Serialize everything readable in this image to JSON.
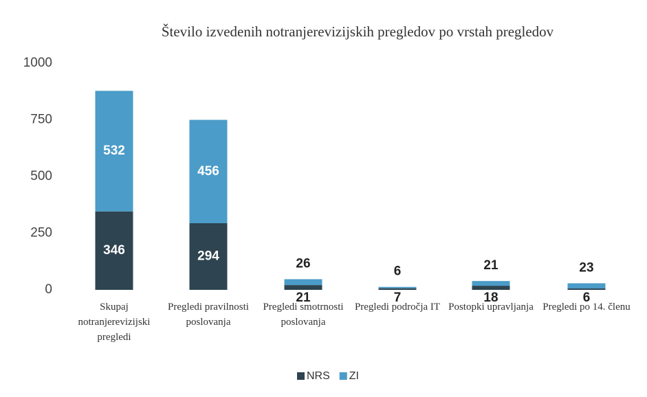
{
  "chart_data": {
    "type": "stacked_bar",
    "title": "Število izvedenih notranjerevizijskih pregledov po vrstah pregledov",
    "categories": [
      "Skupaj notranjerevizijski pregledi",
      "Pregledi pravilnosti poslovanja",
      "Pregledi smotrnosti poslovanja",
      "Pregledi področja IT",
      "Postopki upravljanja",
      "Pregledi po 14. členu"
    ],
    "series": [
      {
        "name": "NRS",
        "color": "#2e4450",
        "values": [
          346,
          294,
          21,
          7,
          18,
          6
        ]
      },
      {
        "name": "ZI",
        "color": "#4b9cc8",
        "values": [
          532,
          456,
          26,
          6,
          21,
          23
        ]
      }
    ],
    "ylim": [
      0,
      1000
    ],
    "yticks": [
      0,
      250,
      500,
      750,
      1000
    ],
    "grid": false,
    "legend": "bottom"
  }
}
